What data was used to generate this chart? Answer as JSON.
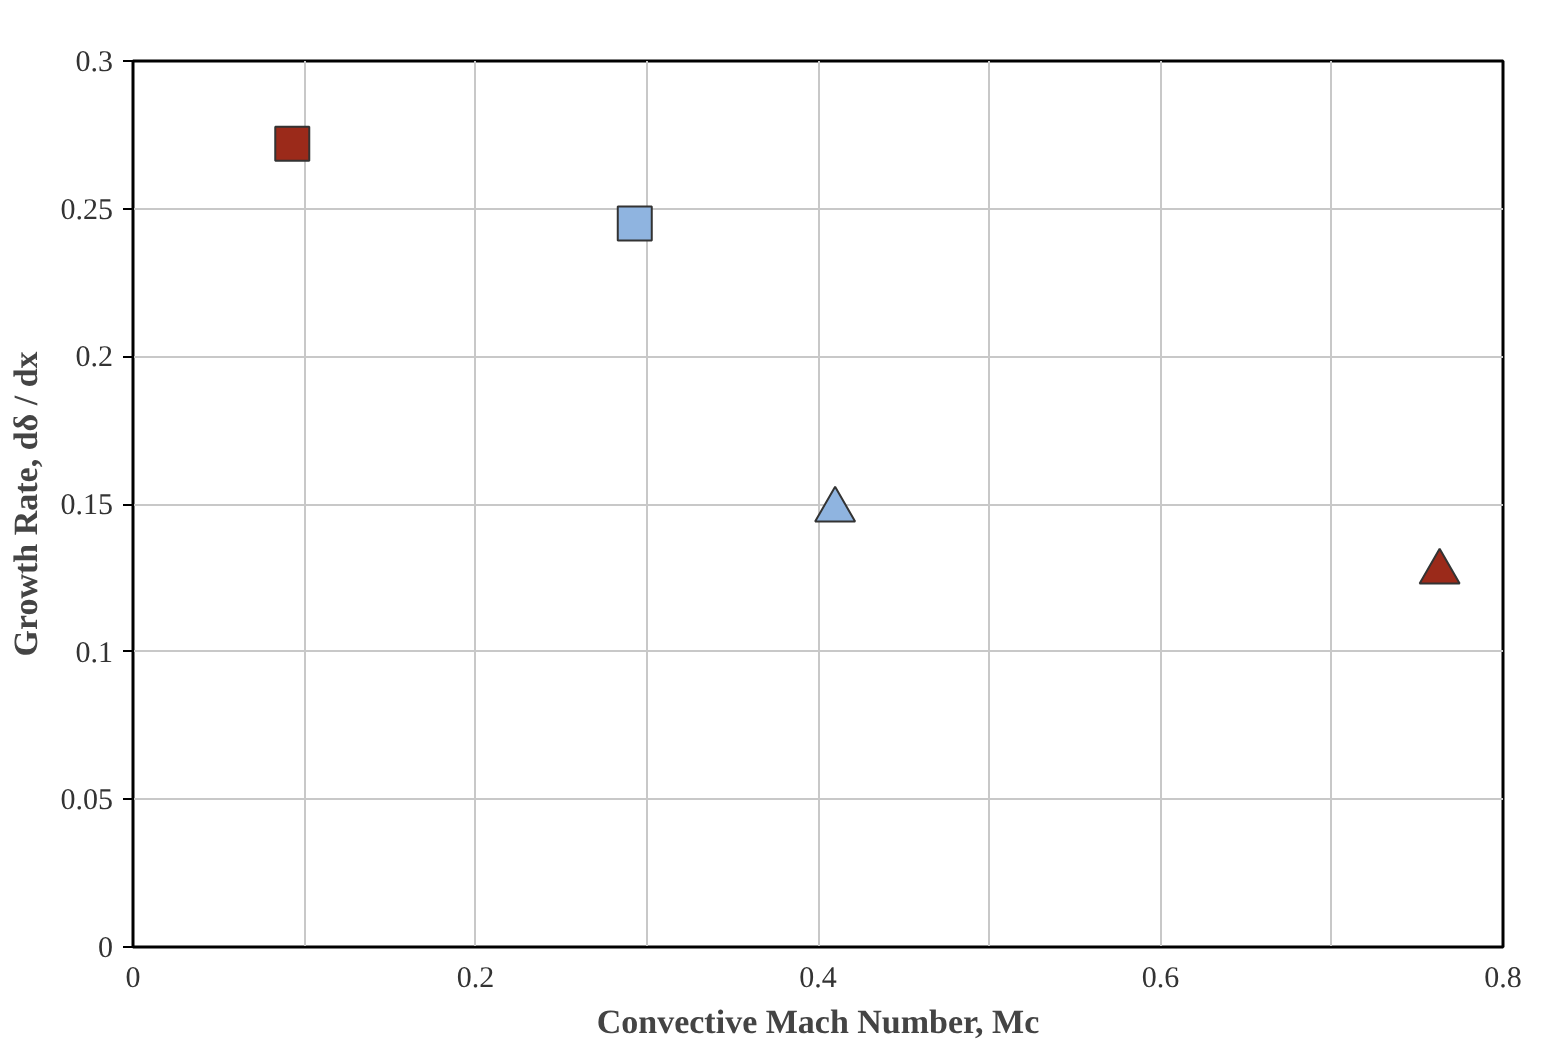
{
  "chart_data": {
    "type": "scatter",
    "xlabel": "Convective Mach Number, Mc",
    "ylabel": "Growth Rate, dδ / dx",
    "xlim": [
      0,
      0.8
    ],
    "ylim": [
      0,
      0.3
    ],
    "xticks": [
      0,
      {
        "value": 0.1,
        "label": null
      },
      0.2,
      {
        "value": 0.3,
        "label": null
      },
      0.4,
      {
        "value": 0.5,
        "label": null
      },
      0.6,
      {
        "value": 0.7,
        "label": null
      },
      0.8
    ],
    "yticks": [
      0,
      0.05,
      0.1,
      0.15,
      0.2,
      0.25,
      0.3
    ],
    "grid": true,
    "series": [
      {
        "color": "#9b2a1a",
        "marker": "square",
        "x": [
          0.093
        ],
        "values": [
          0.272
        ]
      },
      {
        "color": "#8fb4e0",
        "marker": "square",
        "x": [
          0.293
        ],
        "values": [
          0.245
        ]
      },
      {
        "color": "#8fb4e0",
        "marker": "triangle",
        "x": [
          0.41
        ],
        "values": [
          0.148
        ]
      },
      {
        "color": "#9b2a1a",
        "marker": "triangle",
        "x": [
          0.763
        ],
        "values": [
          0.127
        ]
      }
    ]
  }
}
